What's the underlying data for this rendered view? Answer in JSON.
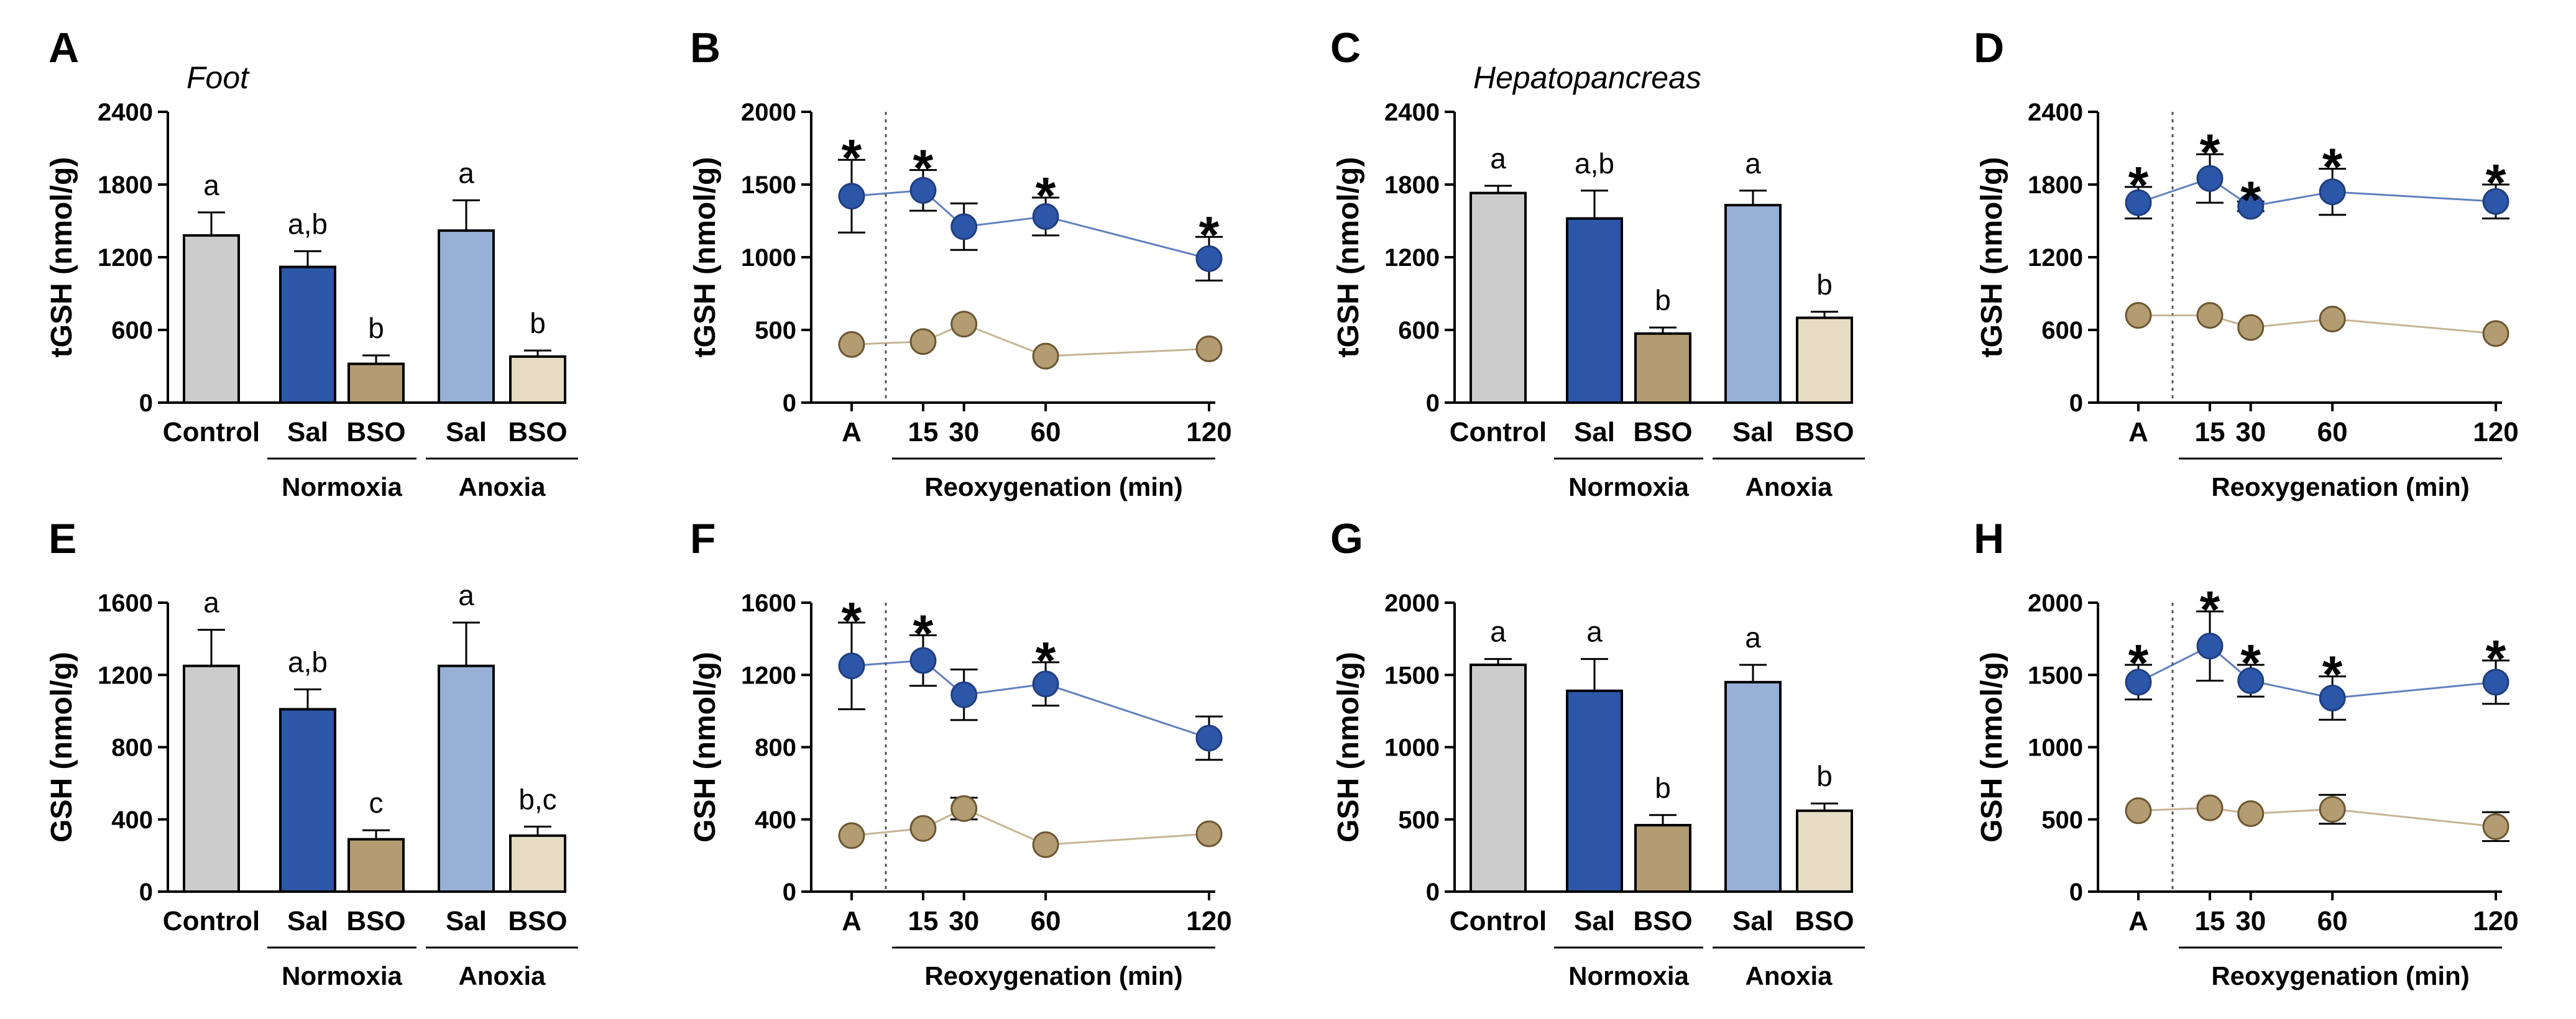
{
  "chart_data": [
    {
      "panel": "A",
      "type": "bar",
      "title": "Foot",
      "ylabel": "tGSH (nmol/g)",
      "ylim": [
        0,
        2400
      ],
      "yticks": [
        "0",
        "600",
        "1200",
        "1800",
        "2400"
      ],
      "categories": [
        "Control",
        "Sal",
        "BSO",
        "Sal",
        "BSO"
      ],
      "groups": [
        {
          "label": "Normoxia",
          "from": 1,
          "to": 2
        },
        {
          "label": "Anoxia",
          "from": 3,
          "to": 4
        }
      ],
      "values": [
        1380,
        1120,
        320,
        1420,
        380
      ],
      "errors": [
        190,
        130,
        70,
        250,
        50
      ],
      "sig": [
        "a",
        "a,b",
        "b",
        "a",
        "b"
      ],
      "colors": [
        "#cccccc",
        "#2c56a8",
        "#b39b72",
        "#99b0d6",
        "#e6dcc4"
      ]
    },
    {
      "panel": "B",
      "type": "line",
      "ylabel": "tGSH (nmol/g)",
      "ylim": [
        0,
        2000
      ],
      "yticks": [
        "0",
        "500",
        "1000",
        "1500",
        "2000"
      ],
      "x": [
        0,
        15,
        30,
        60,
        120
      ],
      "xticklabels": [
        "A",
        "15",
        "30",
        "60",
        "120"
      ],
      "xlabel": "Reoxygenation (min)",
      "series": [
        {
          "name": "Sal",
          "color": "#2c56a8",
          "values": [
            1420,
            1460,
            1210,
            1280,
            990
          ],
          "errors": [
            250,
            140,
            160,
            130,
            150
          ],
          "stars": [
            true,
            true,
            false,
            true,
            true
          ]
        },
        {
          "name": "BSO",
          "color": "#b39b72",
          "values": [
            400,
            420,
            540,
            320,
            370
          ],
          "errors": [
            0,
            0,
            0,
            0,
            0
          ],
          "stars": [
            false,
            false,
            false,
            false,
            false
          ]
        }
      ],
      "star_symbol": "*"
    },
    {
      "panel": "C",
      "type": "bar",
      "title": "Hepatopancreas",
      "ylabel": "tGSH (nmol/g)",
      "ylim": [
        0,
        2400
      ],
      "yticks": [
        "0",
        "600",
        "1200",
        "1800",
        "2400"
      ],
      "categories": [
        "Control",
        "Sal",
        "BSO",
        "Sal",
        "BSO"
      ],
      "groups": [
        {
          "label": "Normoxia",
          "from": 1,
          "to": 2
        },
        {
          "label": "Anoxia",
          "from": 3,
          "to": 4
        }
      ],
      "values": [
        1730,
        1520,
        570,
        1630,
        700
      ],
      "errors": [
        60,
        230,
        50,
        120,
        50
      ],
      "sig": [
        "a",
        "a,b",
        "b",
        "a",
        "b"
      ],
      "colors": [
        "#cccccc",
        "#2c56a8",
        "#b39b72",
        "#99b0d6",
        "#e6dcc4"
      ]
    },
    {
      "panel": "D",
      "type": "line",
      "ylabel": "tGSH (nmol/g)",
      "ylim": [
        0,
        2400
      ],
      "yticks": [
        "0",
        "600",
        "1200",
        "1800",
        "2400"
      ],
      "x": [
        0,
        15,
        30,
        60,
        120
      ],
      "xticklabels": [
        "A",
        "15",
        "30",
        "60",
        "120"
      ],
      "xlabel": "Reoxygenation (min)",
      "series": [
        {
          "name": "Sal",
          "color": "#2c56a8",
          "values": [
            1650,
            1850,
            1620,
            1740,
            1660
          ],
          "errors": [
            130,
            200,
            40,
            190,
            140
          ],
          "stars": [
            true,
            true,
            true,
            true,
            true
          ]
        },
        {
          "name": "BSO",
          "color": "#b39b72",
          "values": [
            720,
            720,
            620,
            690,
            570
          ],
          "errors": [
            0,
            0,
            0,
            0,
            0
          ],
          "stars": [
            false,
            false,
            false,
            false,
            false
          ]
        }
      ],
      "star_symbol": "*"
    },
    {
      "panel": "E",
      "type": "bar",
      "ylabel": "GSH (nmol/g)",
      "ylim": [
        0,
        1600
      ],
      "yticks": [
        "0",
        "400",
        "800",
        "1200",
        "1600"
      ],
      "categories": [
        "Control",
        "Sal",
        "BSO",
        "Sal",
        "BSO"
      ],
      "groups": [
        {
          "label": "Normoxia",
          "from": 1,
          "to": 2
        },
        {
          "label": "Anoxia",
          "from": 3,
          "to": 4
        }
      ],
      "values": [
        1250,
        1010,
        290,
        1250,
        310
      ],
      "errors": [
        200,
        110,
        50,
        240,
        50
      ],
      "sig": [
        "a",
        "a,b",
        "c",
        "a",
        "b,c"
      ],
      "colors": [
        "#cccccc",
        "#2c56a8",
        "#b39b72",
        "#99b0d6",
        "#e6dcc4"
      ]
    },
    {
      "panel": "F",
      "type": "line",
      "ylabel": "GSH (nmol/g)",
      "ylim": [
        0,
        1600
      ],
      "yticks": [
        "0",
        "400",
        "800",
        "1200",
        "1600"
      ],
      "x": [
        0,
        15,
        30,
        60,
        120
      ],
      "xticklabels": [
        "A",
        "15",
        "30",
        "60",
        "120"
      ],
      "xlabel": "Reoxygenation (min)",
      "series": [
        {
          "name": "Sal",
          "color": "#2c56a8",
          "values": [
            1250,
            1280,
            1090,
            1150,
            850
          ],
          "errors": [
            240,
            140,
            140,
            120,
            120
          ],
          "stars": [
            true,
            true,
            false,
            true,
            false
          ]
        },
        {
          "name": "BSO",
          "color": "#b39b72",
          "values": [
            310,
            350,
            460,
            260,
            320
          ],
          "errors": [
            0,
            0,
            60,
            0,
            0
          ],
          "stars": [
            false,
            false,
            false,
            false,
            false
          ]
        }
      ],
      "star_symbol": "*"
    },
    {
      "panel": "G",
      "type": "bar",
      "ylabel": "GSH (nmol/g)",
      "ylim": [
        0,
        2000
      ],
      "yticks": [
        "0",
        "500",
        "1000",
        "1500",
        "2000"
      ],
      "categories": [
        "Control",
        "Sal",
        "BSO",
        "Sal",
        "BSO"
      ],
      "groups": [
        {
          "label": "Normoxia",
          "from": 1,
          "to": 2
        },
        {
          "label": "Anoxia",
          "from": 3,
          "to": 4
        }
      ],
      "values": [
        1570,
        1390,
        460,
        1450,
        560
      ],
      "errors": [
        40,
        220,
        70,
        120,
        50
      ],
      "sig": [
        "a",
        "a",
        "b",
        "a",
        "b"
      ],
      "colors": [
        "#cccccc",
        "#2c56a8",
        "#b39b72",
        "#99b0d6",
        "#e6dcc4"
      ]
    },
    {
      "panel": "H",
      "type": "line",
      "ylabel": "GSH (nmol/g)",
      "ylim": [
        0,
        2000
      ],
      "yticks": [
        "0",
        "500",
        "1000",
        "1500",
        "2000"
      ],
      "x": [
        0,
        15,
        30,
        60,
        120
      ],
      "xticklabels": [
        "A",
        "15",
        "30",
        "60",
        "120"
      ],
      "xlabel": "Reoxygenation (min)",
      "series": [
        {
          "name": "Sal",
          "color": "#2c56a8",
          "values": [
            1450,
            1700,
            1460,
            1340,
            1450
          ],
          "errors": [
            120,
            240,
            110,
            150,
            150
          ],
          "stars": [
            true,
            true,
            true,
            true,
            true
          ]
        },
        {
          "name": "BSO",
          "color": "#b39b72",
          "values": [
            560,
            580,
            540,
            570,
            450
          ],
          "errors": [
            0,
            0,
            0,
            100,
            100
          ],
          "stars": [
            false,
            false,
            false,
            false,
            false
          ]
        }
      ],
      "star_symbol": "*"
    }
  ]
}
